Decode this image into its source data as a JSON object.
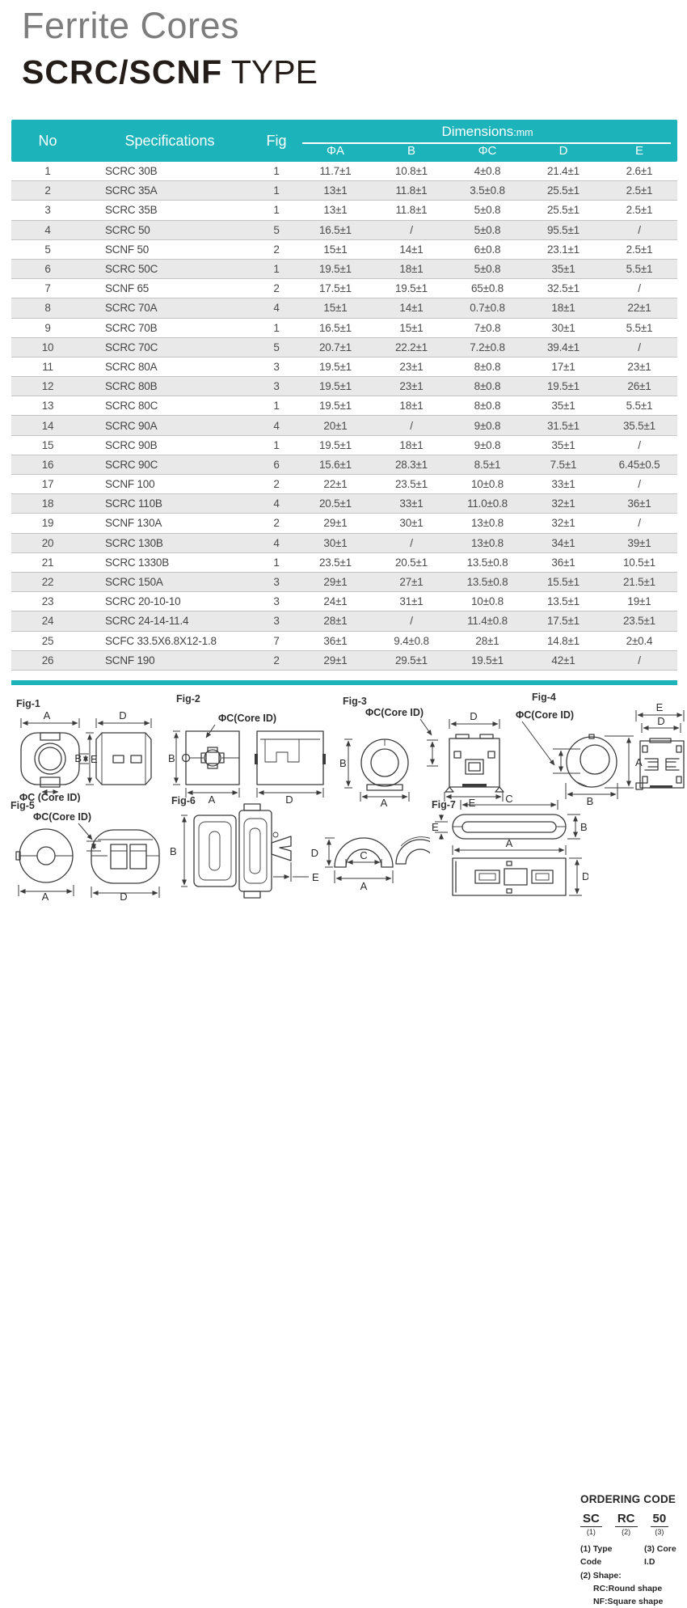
{
  "page": {
    "title": "Ferrite Cores",
    "subtitle_brand": "SCRC/SCNF",
    "subtitle_rest": " TYPE"
  },
  "colors": {
    "accent_teal": "#1cb3bb",
    "row_stripe": "#e9e9e9",
    "title_gray": "#7d7d7d",
    "ink": "#3b3b3b"
  },
  "table": {
    "header": {
      "no": "No",
      "specifications": "Specifications",
      "fig": "Fig",
      "dimensions": "Dimensions",
      "unit": ":mm",
      "columns": [
        "ΦA",
        "B",
        "ΦC",
        "D",
        "E"
      ]
    },
    "rows": [
      [
        "1",
        "SCRC 30B",
        "1",
        "11.7±1",
        "10.8±1",
        "4±0.8",
        "21.4±1",
        "2.6±1"
      ],
      [
        "2",
        "SCRC 35A",
        "1",
        "13±1",
        "11.8±1",
        "3.5±0.8",
        "25.5±1",
        "2.5±1"
      ],
      [
        "3",
        "SCRC 35B",
        "1",
        "13±1",
        "11.8±1",
        "5±0.8",
        "25.5±1",
        "2.5±1"
      ],
      [
        "4",
        "SCRC 50",
        "5",
        "16.5±1",
        "/",
        "5±0.8",
        "95.5±1",
        "/"
      ],
      [
        "5",
        "SCNF 50",
        "2",
        "15±1",
        "14±1",
        "6±0.8",
        "23.1±1",
        "2.5±1"
      ],
      [
        "6",
        "SCRC 50C",
        "1",
        "19.5±1",
        "18±1",
        "5±0.8",
        "35±1",
        "5.5±1"
      ],
      [
        "7",
        "SCNF 65",
        "2",
        "17.5±1",
        "19.5±1",
        "65±0.8",
        "32.5±1",
        "/"
      ],
      [
        "8",
        "SCRC 70A",
        "4",
        "15±1",
        "14±1",
        "0.7±0.8",
        "18±1",
        "22±1"
      ],
      [
        "9",
        "SCRC 70B",
        "1",
        "16.5±1",
        "15±1",
        "7±0.8",
        "30±1",
        "5.5±1"
      ],
      [
        "10",
        "SCRC 70C",
        "5",
        "20.7±1",
        "22.2±1",
        "7.2±0.8",
        "39.4±1",
        "/"
      ],
      [
        "11",
        "SCRC 80A",
        "3",
        "19.5±1",
        "23±1",
        "8±0.8",
        "17±1",
        "23±1"
      ],
      [
        "12",
        "SCRC 80B",
        "3",
        "19.5±1",
        "23±1",
        "8±0.8",
        "19.5±1",
        "26±1"
      ],
      [
        "13",
        "SCRC 80C",
        "1",
        "19.5±1",
        "18±1",
        "8±0.8",
        "35±1",
        "5.5±1"
      ],
      [
        "14",
        "SCRC 90A",
        "4",
        "20±1",
        "/",
        "9±0.8",
        "31.5±1",
        "35.5±1"
      ],
      [
        "15",
        "SCRC 90B",
        "1",
        "19.5±1",
        "18±1",
        "9±0.8",
        "35±1",
        "/"
      ],
      [
        "16",
        "SCRC 90C",
        "6",
        "15.6±1",
        "28.3±1",
        "8.5±1",
        "7.5±1",
        "6.45±0.5"
      ],
      [
        "17",
        "SCNF 100",
        "2",
        "22±1",
        "23.5±1",
        "10±0.8",
        "33±1",
        "/"
      ],
      [
        "18",
        "SCRC 110B",
        "4",
        "20.5±1",
        "33±1",
        "11.0±0.8",
        "32±1",
        "36±1"
      ],
      [
        "19",
        "SCNF 130A",
        "2",
        "29±1",
        "30±1",
        "13±0.8",
        "32±1",
        "/"
      ],
      [
        "20",
        "SCRC 130B",
        "4",
        "30±1",
        "/",
        "13±0.8",
        "34±1",
        "39±1"
      ],
      [
        "21",
        "SCRC 1330B",
        "1",
        "23.5±1",
        "20.5±1",
        "13.5±0.8",
        "36±1",
        "10.5±1"
      ],
      [
        "22",
        "SCRC 150A",
        "3",
        "29±1",
        "27±1",
        "13.5±0.8",
        "15.5±1",
        "21.5±1"
      ],
      [
        "23",
        "SCRC 20-10-10",
        "3",
        "24±1",
        "31±1",
        "10±0.8",
        "13.5±1",
        "19±1"
      ],
      [
        "24",
        "SCRC 24-14-11.4",
        "3",
        "28±1",
        "/",
        "11.4±0.8",
        "17.5±1",
        "23.5±1"
      ],
      [
        "25",
        "SCFC 33.5X6.8X12-1.8",
        "7",
        "36±1",
        "9.4±0.8",
        "28±1",
        "14.8±1",
        "2±0.4"
      ],
      [
        "26",
        "SCNF 190",
        "2",
        "29±1",
        "29.5±1",
        "19.5±1",
        "42±1",
        "/"
      ]
    ]
  },
  "figures": {
    "labels": [
      "Fig-1",
      "Fig-2",
      "Fig-3",
      "Fig-4",
      "Fig-5",
      "Fig-6",
      "Fig-7"
    ],
    "core_id_label": "ΦC(Core ID)",
    "core_id_label_spaced": "ΦC (Core ID)",
    "dim_letters": {
      "A": "A",
      "B": "B",
      "C": "C",
      "D": "D",
      "E": "E"
    }
  },
  "ordering_code": {
    "title": "ORDERING CODE",
    "codes": [
      "SC",
      "RC",
      "50"
    ],
    "code_nums": [
      "(1)",
      "(2)",
      "(3)"
    ],
    "note_1": "(1) Type Code",
    "note_3": "(3) Core I.D",
    "note_2": "(2) Shape:",
    "shape_rc": "RC:Round shape",
    "shape_nf": "NF:Square shape"
  }
}
